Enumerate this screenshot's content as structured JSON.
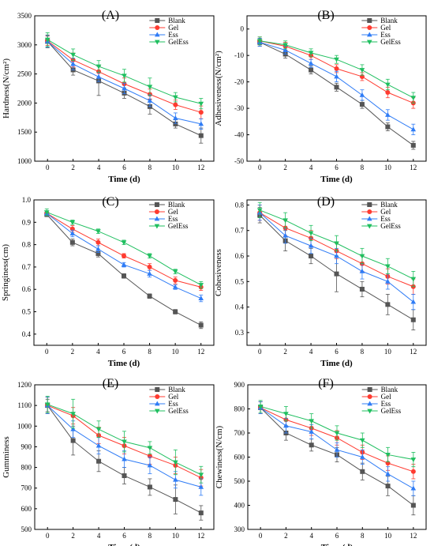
{
  "chart_data": [
    {
      "type": "line",
      "panel": "(A)",
      "xlabel": "Time (d)",
      "ylabel": "Hardness(N/cm²)",
      "x": [
        0,
        2,
        4,
        6,
        8,
        10,
        12
      ],
      "xlim": [
        -1,
        13
      ],
      "xticks": [
        0,
        2,
        4,
        6,
        8,
        10,
        12
      ],
      "ylim": [
        1000,
        3500
      ],
      "yticks": [
        1000,
        1500,
        2000,
        2500,
        3000,
        3500
      ],
      "legend": "top-right",
      "series": [
        {
          "name": "Blank",
          "color": "#555555",
          "marker": "square",
          "values": [
            3060,
            2570,
            2380,
            2170,
            1940,
            1640,
            1440
          ],
          "err": [
            110,
            90,
            250,
            90,
            130,
            70,
            130
          ]
        },
        {
          "name": "Gel",
          "color": "#ff3b30",
          "marker": "circle",
          "values": [
            3070,
            2740,
            2540,
            2330,
            2150,
            1970,
            1840
          ],
          "err": [
            80,
            120,
            100,
            100,
            90,
            80,
            110
          ]
        },
        {
          "name": "Ess",
          "color": "#2f7cf6",
          "marker": "triangle-up",
          "values": [
            3060,
            2670,
            2450,
            2250,
            2040,
            1740,
            1640
          ],
          "err": [
            100,
            100,
            80,
            90,
            100,
            90,
            90
          ]
        },
        {
          "name": "GelEss",
          "color": "#1fbf5f",
          "marker": "triangle-down",
          "values": [
            3090,
            2830,
            2630,
            2470,
            2280,
            2100,
            1990
          ],
          "err": [
            120,
            100,
            100,
            110,
            150,
            80,
            90
          ]
        }
      ]
    },
    {
      "type": "line",
      "panel": "(B)",
      "xlabel": "Time (d)",
      "ylabel": "Adhesiveness(N/cm²)",
      "x": [
        0,
        2,
        4,
        6,
        8,
        10,
        12
      ],
      "xlim": [
        -1,
        13
      ],
      "xticks": [
        0,
        2,
        4,
        6,
        8,
        10,
        12
      ],
      "ylim": [
        -50,
        5
      ],
      "yticks": [
        -50,
        -40,
        -30,
        -20,
        -10,
        0
      ],
      "legend": "top-right",
      "series": [
        {
          "name": "Blank",
          "color": "#555555",
          "marker": "square",
          "values": [
            -5,
            -9.5,
            -15.5,
            -22,
            -28.5,
            -37,
            -44
          ],
          "err": [
            1.5,
            1.5,
            1.5,
            1.5,
            1.5,
            1.5,
            1.5
          ]
        },
        {
          "name": "Gel",
          "color": "#ff3b30",
          "marker": "circle",
          "values": [
            -4.5,
            -6.5,
            -10,
            -15,
            -18,
            -24,
            -28
          ],
          "err": [
            1.5,
            1.5,
            1.5,
            1.5,
            1.5,
            2,
            2
          ]
        },
        {
          "name": "Ess",
          "color": "#2f7cf6",
          "marker": "triangle-up",
          "values": [
            -5,
            -8,
            -13,
            -18,
            -25,
            -32.5,
            -38
          ],
          "err": [
            1.5,
            1.5,
            1.5,
            2,
            2,
            2,
            2
          ]
        },
        {
          "name": "GelEss",
          "color": "#1fbf5f",
          "marker": "triangle-down",
          "values": [
            -4.5,
            -6,
            -9,
            -11.5,
            -15.5,
            -21,
            -26
          ],
          "err": [
            1.5,
            1.5,
            1.5,
            1.5,
            2,
            2,
            2
          ]
        }
      ]
    },
    {
      "type": "line",
      "panel": "(C)",
      "xlabel": "Time (d)",
      "ylabel": "Springiness(cm)",
      "x": [
        0,
        2,
        4,
        6,
        8,
        10,
        12
      ],
      "xlim": [
        -1,
        13
      ],
      "xticks": [
        0,
        2,
        4,
        6,
        8,
        10,
        12
      ],
      "ylim": [
        0.35,
        1.0
      ],
      "yticks": [
        0.4,
        0.5,
        0.6,
        0.7,
        0.8,
        0.9,
        1.0
      ],
      "legend": "top-right",
      "series": [
        {
          "name": "Blank",
          "color": "#555555",
          "marker": "square",
          "values": [
            0.935,
            0.81,
            0.76,
            0.66,
            0.57,
            0.5,
            0.44
          ],
          "err": [
            0.01,
            0.015,
            0.015,
            0.01,
            0.01,
            0.01,
            0.015
          ]
        },
        {
          "name": "Gel",
          "color": "#ff3b30",
          "marker": "circle",
          "values": [
            0.94,
            0.87,
            0.81,
            0.75,
            0.7,
            0.64,
            0.61
          ],
          "err": [
            0.01,
            0.015,
            0.015,
            0.01,
            0.015,
            0.015,
            0.015
          ]
        },
        {
          "name": "Ess",
          "color": "#2f7cf6",
          "marker": "triangle-up",
          "values": [
            0.94,
            0.85,
            0.78,
            0.71,
            0.67,
            0.61,
            0.56
          ],
          "err": [
            0.01,
            0.015,
            0.015,
            0.01,
            0.015,
            0.01,
            0.015
          ]
        },
        {
          "name": "GelEss",
          "color": "#1fbf5f",
          "marker": "triangle-down",
          "values": [
            0.945,
            0.9,
            0.86,
            0.81,
            0.75,
            0.68,
            0.62
          ],
          "err": [
            0.015,
            0.01,
            0.01,
            0.01,
            0.01,
            0.01,
            0.015
          ]
        }
      ]
    },
    {
      "type": "line",
      "panel": "(D)",
      "xlabel": "Time (d)",
      "ylabel": "Cohesiveness",
      "x": [
        0,
        2,
        4,
        6,
        8,
        10,
        12
      ],
      "xlim": [
        -1,
        13
      ],
      "xticks": [
        0,
        2,
        4,
        6,
        8,
        10,
        12
      ],
      "ylim": [
        0.25,
        0.82
      ],
      "yticks": [
        0.3,
        0.4,
        0.5,
        0.6,
        0.7,
        0.8
      ],
      "legend": "top-right",
      "series": [
        {
          "name": "Blank",
          "color": "#555555",
          "marker": "square",
          "values": [
            0.76,
            0.66,
            0.6,
            0.53,
            0.47,
            0.41,
            0.35
          ],
          "err": [
            0.03,
            0.04,
            0.03,
            0.07,
            0.03,
            0.04,
            0.04
          ]
        },
        {
          "name": "Gel",
          "color": "#ff3b30",
          "marker": "circle",
          "values": [
            0.77,
            0.71,
            0.67,
            0.62,
            0.57,
            0.52,
            0.48
          ],
          "err": [
            0.03,
            0.03,
            0.03,
            0.03,
            0.03,
            0.03,
            0.03
          ]
        },
        {
          "name": "Ess",
          "color": "#2f7cf6",
          "marker": "triangle-up",
          "values": [
            0.77,
            0.68,
            0.64,
            0.6,
            0.54,
            0.5,
            0.42
          ],
          "err": [
            0.03,
            0.03,
            0.03,
            0.03,
            0.03,
            0.03,
            0.03
          ]
        },
        {
          "name": "GelEss",
          "color": "#1fbf5f",
          "marker": "triangle-down",
          "values": [
            0.78,
            0.74,
            0.69,
            0.65,
            0.6,
            0.56,
            0.51
          ],
          "err": [
            0.03,
            0.03,
            0.03,
            0.03,
            0.03,
            0.03,
            0.03
          ]
        }
      ]
    },
    {
      "type": "line",
      "panel": "(E)",
      "xlabel": "Time (d)",
      "ylabel": "Gumminess",
      "x": [
        0,
        2,
        4,
        6,
        8,
        10,
        12
      ],
      "xlim": [
        -1,
        13
      ],
      "xticks": [
        0,
        2,
        4,
        6,
        8,
        10,
        12
      ],
      "ylim": [
        500,
        1200
      ],
      "yticks": [
        500,
        600,
        700,
        800,
        900,
        1000,
        1100,
        1200
      ],
      "legend": "top-right",
      "series": [
        {
          "name": "Blank",
          "color": "#555555",
          "marker": "square",
          "values": [
            1100,
            930,
            830,
            760,
            705,
            645,
            580
          ],
          "err": [
            30,
            70,
            50,
            40,
            40,
            70,
            35
          ]
        },
        {
          "name": "Gel",
          "color": "#ff3b30",
          "marker": "circle",
          "values": [
            1100,
            1050,
            955,
            905,
            855,
            810,
            750
          ],
          "err": [
            40,
            40,
            40,
            40,
            40,
            40,
            40
          ]
        },
        {
          "name": "Ess",
          "color": "#2f7cf6",
          "marker": "triangle-up",
          "values": [
            1100,
            985,
            905,
            840,
            810,
            740,
            705
          ],
          "err": [
            40,
            40,
            40,
            40,
            40,
            40,
            40
          ]
        },
        {
          "name": "GelEss",
          "color": "#1fbf5f",
          "marker": "triangle-down",
          "values": [
            1105,
            1060,
            985,
            925,
            895,
            825,
            765
          ],
          "err": [
            40,
            70,
            40,
            50,
            30,
            60,
            40
          ]
        }
      ]
    },
    {
      "type": "line",
      "panel": "(F)",
      "xlabel": "Time (d)",
      "ylabel": "Chewiness(N/cm)",
      "x": [
        0,
        2,
        4,
        6,
        8,
        10,
        12
      ],
      "xlim": [
        -1,
        13
      ],
      "xticks": [
        0,
        2,
        4,
        6,
        8,
        10,
        12
      ],
      "ylim": [
        300,
        900
      ],
      "yticks": [
        300,
        400,
        500,
        600,
        700,
        800,
        900
      ],
      "legend": "top-right",
      "series": [
        {
          "name": "Blank",
          "color": "#555555",
          "marker": "square",
          "values": [
            805,
            700,
            650,
            610,
            540,
            480,
            400
          ],
          "err": [
            25,
            30,
            25,
            30,
            35,
            40,
            40
          ]
        },
        {
          "name": "Gel",
          "color": "#ff3b30",
          "marker": "circle",
          "values": [
            805,
            755,
            720,
            680,
            620,
            575,
            540
          ],
          "err": [
            25,
            30,
            30,
            30,
            30,
            30,
            30
          ]
        },
        {
          "name": "Ess",
          "color": "#2f7cf6",
          "marker": "triangle-up",
          "values": [
            805,
            730,
            705,
            630,
            600,
            530,
            470
          ],
          "err": [
            25,
            30,
            30,
            30,
            30,
            30,
            30
          ]
        },
        {
          "name": "GelEss",
          "color": "#1fbf5f",
          "marker": "triangle-down",
          "values": [
            810,
            780,
            750,
            700,
            670,
            610,
            590
          ],
          "err": [
            25,
            30,
            30,
            30,
            30,
            30,
            30
          ]
        }
      ]
    }
  ]
}
